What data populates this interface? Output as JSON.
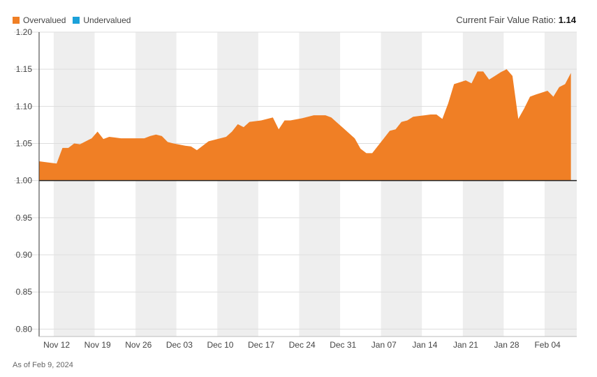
{
  "legend": {
    "overvalued_label": "Overvalued",
    "undervalued_label": "Undervalued",
    "overvalued_color": "#f07f25",
    "undervalued_color": "#1ba1d9"
  },
  "ratio": {
    "label": "Current Fair Value Ratio:",
    "value": "1.14"
  },
  "footer": "As of Feb 9, 2024",
  "chart_data": {
    "type": "area",
    "baseline": 1.0,
    "ylim": [
      0.79,
      1.2
    ],
    "yticks": [
      {
        "label": "1.20",
        "value": 1.2
      },
      {
        "label": "1.15",
        "value": 1.15
      },
      {
        "label": "1.10",
        "value": 1.1
      },
      {
        "label": "1.05",
        "value": 1.05
      },
      {
        "label": "1.00",
        "value": 1.0
      },
      {
        "label": "0.95",
        "value": 0.95
      },
      {
        "label": "0.90",
        "value": 0.9
      },
      {
        "label": "0.85",
        "value": 0.85
      },
      {
        "label": "0.80",
        "value": 0.8
      }
    ],
    "xlim": [
      "2023-11-09",
      "2024-02-09"
    ],
    "xticks": [
      {
        "label": "Nov 12",
        "date": "2023-11-12"
      },
      {
        "label": "Nov 19",
        "date": "2023-11-19"
      },
      {
        "label": "Nov 26",
        "date": "2023-11-26"
      },
      {
        "label": "Dec 03",
        "date": "2023-12-03"
      },
      {
        "label": "Dec 10",
        "date": "2023-12-10"
      },
      {
        "label": "Dec 17",
        "date": "2023-12-17"
      },
      {
        "label": "Dec 24",
        "date": "2023-12-24"
      },
      {
        "label": "Dec 31",
        "date": "2023-12-31"
      },
      {
        "label": "Jan 07",
        "date": "2024-01-07"
      },
      {
        "label": "Jan 14",
        "date": "2024-01-14"
      },
      {
        "label": "Jan 21",
        "date": "2024-01-21"
      },
      {
        "label": "Jan 28",
        "date": "2024-01-28"
      },
      {
        "label": "Feb 04",
        "date": "2024-02-04"
      }
    ],
    "series": [
      {
        "color": "#f07f25",
        "points": [
          [
            "2023-11-09",
            1.026
          ],
          [
            "2023-11-10",
            1.025
          ],
          [
            "2023-11-12",
            1.023
          ],
          [
            "2023-11-13",
            1.044
          ],
          [
            "2023-11-14",
            1.044
          ],
          [
            "2023-11-15",
            1.05
          ],
          [
            "2023-11-16",
            1.049
          ],
          [
            "2023-11-18",
            1.057
          ],
          [
            "2023-11-19",
            1.066
          ],
          [
            "2023-11-20",
            1.056
          ],
          [
            "2023-11-21",
            1.059
          ],
          [
            "2023-11-22",
            1.058
          ],
          [
            "2023-11-23",
            1.057
          ],
          [
            "2023-11-24",
            1.057
          ],
          [
            "2023-11-26",
            1.057
          ],
          [
            "2023-11-27",
            1.057
          ],
          [
            "2023-11-28",
            1.06
          ],
          [
            "2023-11-29",
            1.062
          ],
          [
            "2023-11-30",
            1.06
          ],
          [
            "2023-12-01",
            1.052
          ],
          [
            "2023-12-02",
            1.05
          ],
          [
            "2023-12-04",
            1.047
          ],
          [
            "2023-12-05",
            1.046
          ],
          [
            "2023-12-06",
            1.041
          ],
          [
            "2023-12-07",
            1.047
          ],
          [
            "2023-12-08",
            1.053
          ],
          [
            "2023-12-10",
            1.057
          ],
          [
            "2023-12-11",
            1.059
          ],
          [
            "2023-12-12",
            1.066
          ],
          [
            "2023-12-13",
            1.076
          ],
          [
            "2023-12-14",
            1.072
          ],
          [
            "2023-12-15",
            1.079
          ],
          [
            "2023-12-17",
            1.081
          ],
          [
            "2023-12-18",
            1.083
          ],
          [
            "2023-12-19",
            1.085
          ],
          [
            "2023-12-20",
            1.069
          ],
          [
            "2023-12-21",
            1.081
          ],
          [
            "2023-12-22",
            1.081
          ],
          [
            "2023-12-24",
            1.084
          ],
          [
            "2023-12-25",
            1.086
          ],
          [
            "2023-12-26",
            1.088
          ],
          [
            "2023-12-27",
            1.088
          ],
          [
            "2023-12-28",
            1.088
          ],
          [
            "2023-12-29",
            1.085
          ],
          [
            "2023-12-30",
            1.078
          ],
          [
            "2023-12-31",
            1.071
          ],
          [
            "2024-01-01",
            1.064
          ],
          [
            "2024-01-02",
            1.057
          ],
          [
            "2024-01-03",
            1.043
          ],
          [
            "2024-01-04",
            1.037
          ],
          [
            "2024-01-05",
            1.037
          ],
          [
            "2024-01-06",
            1.047
          ],
          [
            "2024-01-07",
            1.057
          ],
          [
            "2024-01-08",
            1.067
          ],
          [
            "2024-01-09",
            1.069
          ],
          [
            "2024-01-10",
            1.079
          ],
          [
            "2024-01-11",
            1.081
          ],
          [
            "2024-01-12",
            1.086
          ],
          [
            "2024-01-13",
            1.087
          ],
          [
            "2024-01-14",
            1.088
          ],
          [
            "2024-01-15",
            1.089
          ],
          [
            "2024-01-16",
            1.089
          ],
          [
            "2024-01-17",
            1.083
          ],
          [
            "2024-01-18",
            1.104
          ],
          [
            "2024-01-19",
            1.13
          ],
          [
            "2024-01-21",
            1.135
          ],
          [
            "2024-01-22",
            1.131
          ],
          [
            "2024-01-23",
            1.147
          ],
          [
            "2024-01-24",
            1.147
          ],
          [
            "2024-01-25",
            1.136
          ],
          [
            "2024-01-26",
            1.141
          ],
          [
            "2024-01-27",
            1.146
          ],
          [
            "2024-01-28",
            1.15
          ],
          [
            "2024-01-29",
            1.141
          ],
          [
            "2024-01-30",
            1.083
          ],
          [
            "2024-01-31",
            1.097
          ],
          [
            "2024-02-01",
            1.113
          ],
          [
            "2024-02-02",
            1.116
          ],
          [
            "2024-02-04",
            1.121
          ],
          [
            "2024-02-05",
            1.113
          ],
          [
            "2024-02-06",
            1.126
          ],
          [
            "2024-02-07",
            1.13
          ],
          [
            "2024-02-08",
            1.145
          ]
        ]
      }
    ]
  }
}
